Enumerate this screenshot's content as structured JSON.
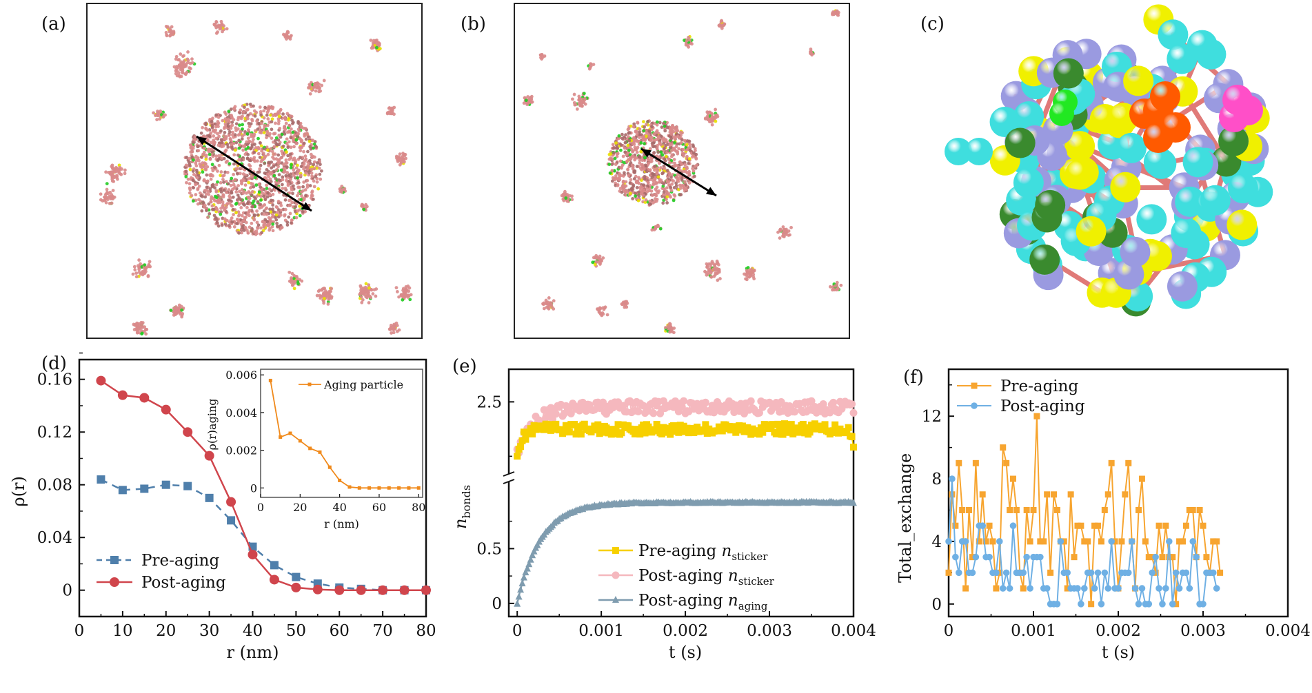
{
  "panels": {
    "a": {
      "label": "(a)",
      "description": "Simulation snapshot pre-aging: large condensate with surrounding small clusters, double arrow across droplet"
    },
    "b": {
      "label": "(b)",
      "description": "Simulation snapshot post-aging: smaller condensate with surrounding clusters, double arrow across droplet"
    },
    "c": {
      "label": "(c)",
      "description": "3D rendering of a condensate cluster with colored beads (purple, cyan, yellow, green, orange, magenta) connected by pink bonds"
    },
    "d": {
      "label": "(d)"
    },
    "e": {
      "label": "(e)"
    },
    "f": {
      "label": "(f)"
    }
  },
  "colors": {
    "particle": "#d98a8a",
    "sticker_green": "#22cc22",
    "sticker_yellow": "#e8e000",
    "pre_d": "#4f7fab",
    "post_d": "#d0454c",
    "inset": "#f08a1c",
    "pre_e": "#f7d000",
    "post_e": "#f5b8be",
    "aging_e": "#7f9caf",
    "pre_f": "#f7a530",
    "post_f": "#6fb0e4"
  },
  "chart_data": [
    {
      "id": "d",
      "type": "line",
      "title": "",
      "xlabel": "r (nm)",
      "ylabel": "ρ(r)",
      "xlim": [
        0,
        80
      ],
      "ylim": [
        -0.02,
        0.175
      ],
      "xticks": [
        0,
        10,
        20,
        30,
        40,
        50,
        60,
        70,
        80
      ],
      "xtick_labels": [
        "0",
        "10",
        "20",
        "30",
        "40",
        "50",
        "60",
        "70",
        "80"
      ],
      "yticks": [
        0,
        0.04,
        0.08,
        0.12,
        0.16
      ],
      "ytick_labels": [
        "0",
        "0.04",
        "0.08",
        "0.12",
        "0.16"
      ],
      "legend_position": "bottom-left",
      "x": [
        5,
        10,
        15,
        20,
        25,
        30,
        35,
        40,
        45,
        50,
        55,
        60,
        65,
        70,
        75,
        80
      ],
      "series": [
        {
          "name": "Pre-aging",
          "style": "dashed-square",
          "values": [
            0.084,
            0.076,
            0.077,
            0.08,
            0.079,
            0.07,
            0.053,
            0.033,
            0.019,
            0.01,
            0.005,
            0.002,
            0.001,
            0.0,
            0.0,
            0.0
          ]
        },
        {
          "name": "Post-aging",
          "style": "solid-circle",
          "values": [
            0.159,
            0.148,
            0.146,
            0.137,
            0.12,
            0.102,
            0.067,
            0.027,
            0.008,
            0.002,
            0.0005,
            0.0,
            0.0,
            0.0,
            0.0,
            0.0
          ]
        }
      ],
      "inset": {
        "type": "line",
        "xlabel": "r (nm)",
        "ylabel": "ρ(r)aging",
        "xlim": [
          0,
          82
        ],
        "ylim": [
          -0.0005,
          0.0063
        ],
        "xticks": [
          0,
          20,
          40,
          60,
          80
        ],
        "xtick_labels": [
          "0",
          "20",
          "40",
          "60",
          "80"
        ],
        "yticks": [
          0,
          0.002,
          0.004,
          0.006
        ],
        "ytick_labels": [
          "0",
          "0.002",
          "0.004",
          "0.006"
        ],
        "legend_position": "top-right",
        "x": [
          5,
          10,
          15,
          20,
          25,
          30,
          35,
          40,
          45,
          50,
          55,
          60,
          65,
          70,
          75,
          80
        ],
        "series": [
          {
            "name": "Aging particle",
            "values": [
              0.0057,
              0.0027,
              0.0029,
              0.0025,
              0.0021,
              0.0019,
              0.0011,
              0.0004,
              5e-05,
              0.0,
              0.0,
              0.0,
              0.0,
              0.0,
              0.0,
              0.0
            ]
          }
        ]
      }
    },
    {
      "id": "e",
      "type": "line",
      "title": "",
      "xlabel": "t (s)",
      "ylabel": "n_bonds",
      "xlim": [
        -0.0001,
        0.004
      ],
      "broken_axis": true,
      "lower_ylim": [
        -0.12,
        1.1
      ],
      "upper_ylim": [
        1.85,
        2.8
      ],
      "yticks": [
        0,
        0.5,
        2.5
      ],
      "ytick_labels": [
        "0",
        "0.5",
        "2.5"
      ],
      "xticks": [
        0,
        0.001,
        0.002,
        0.003,
        0.004
      ],
      "xtick_labels": [
        "0",
        "0.001",
        "0.002",
        "0.003",
        "0.004"
      ],
      "legend_position": "bottom-right",
      "series": [
        {
          "name": "Pre-aging n_sticker",
          "legend_main": "Pre-aging ",
          "legend_var": "n",
          "legend_sub": "sticker",
          "style": "square",
          "summary": "rises from ~2.05 to plateau ~2.25 with noise ±0.05, drops to ~2.05 at t=0.004"
        },
        {
          "name": "Post-aging n_sticker",
          "legend_main": "Post-aging ",
          "legend_var": "n",
          "legend_sub": "sticker",
          "style": "circle",
          "summary": "rises from ~2.05 to plateau ~2.45 with noise ±0.05"
        },
        {
          "name": "Post-aging n_aging",
          "legend_main": "Post-aging ",
          "legend_var": "n",
          "legend_sub": "aging",
          "style": "triangle",
          "summary": "rises from 0 at t=0 to ~0.85 by t=0.001, plateau ~0.93 at t=0.004"
        }
      ],
      "sample_t": [
        0,
        5e-05,
        0.0001,
        0.00015,
        0.0002,
        0.0003,
        0.0004,
        0.0005,
        0.0007,
        0.001,
        0.0015,
        0.002,
        0.0025,
        0.003,
        0.0035,
        0.004
      ],
      "sample_aging": [
        0,
        0.12,
        0.22,
        0.32,
        0.4,
        0.52,
        0.62,
        0.7,
        0.78,
        0.84,
        0.88,
        0.9,
        0.91,
        0.92,
        0.92,
        0.92
      ]
    },
    {
      "id": "f",
      "type": "line",
      "title": "",
      "xlabel": "t (s)",
      "ylabel": "Total_exchange",
      "xlim": [
        0,
        0.004
      ],
      "ylim": [
        -0.8,
        15
      ],
      "xticks": [
        0,
        0.001,
        0.002,
        0.003,
        0.004
      ],
      "xtick_labels": [
        "0",
        "0.001",
        "0.002",
        "0.003",
        "0.004"
      ],
      "yticks": [
        0,
        4,
        8,
        12
      ],
      "ytick_labels": [
        "0",
        "4",
        "8",
        "12"
      ],
      "legend_position": "top-left",
      "dt": 4e-05,
      "series": [
        {
          "name": "Pre-aging",
          "style": "square",
          "values": [
            2,
            7,
            5,
            9,
            6,
            1,
            6,
            3,
            9,
            4,
            7,
            4,
            5,
            4,
            1,
            2,
            10,
            9,
            6,
            8,
            6,
            2,
            1,
            6,
            4,
            6,
            12,
            4,
            4,
            7,
            2,
            7,
            6,
            4,
            4,
            1,
            7,
            3,
            5,
            5,
            4,
            4,
            0,
            5,
            5,
            4,
            6,
            7,
            9,
            4,
            1,
            4,
            7,
            9,
            4,
            1,
            6,
            8,
            4,
            3,
            3,
            2,
            5,
            3,
            5,
            3,
            3,
            0,
            4,
            4,
            5,
            6,
            6,
            3,
            6,
            5,
            3,
            2,
            4,
            4,
            2
          ]
        },
        {
          "name": "Post-aging",
          "style": "circle",
          "values": [
            4,
            8,
            3,
            2,
            4,
            4,
            2,
            2,
            3,
            5,
            5,
            3,
            3,
            2,
            2,
            4,
            1,
            2,
            1,
            5,
            2,
            2,
            2,
            3,
            1,
            3,
            3,
            3,
            1,
            1,
            0,
            0,
            0,
            4,
            2,
            2,
            1,
            1,
            1,
            0,
            1,
            2,
            2,
            1,
            2,
            0,
            2,
            1,
            4,
            1,
            1,
            2,
            2,
            2,
            4,
            1,
            0,
            1,
            0,
            0,
            2,
            3,
            1,
            0,
            1,
            4,
            0,
            2,
            1,
            2,
            2,
            1,
            4,
            3,
            0,
            0,
            2,
            2,
            2,
            1
          ]
        }
      ]
    }
  ]
}
